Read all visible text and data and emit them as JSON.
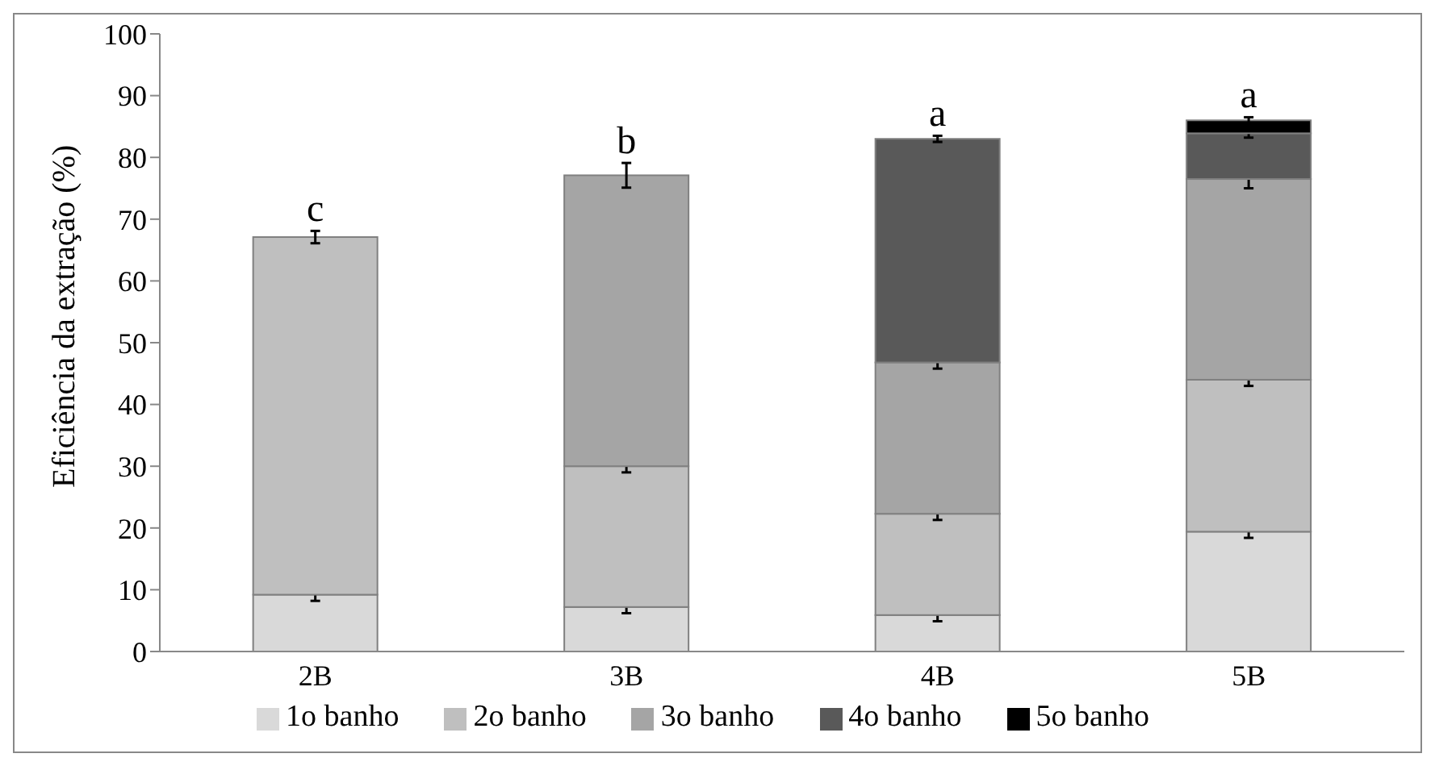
{
  "chart_data": {
    "type": "bar",
    "stacked": true,
    "ylabel": "Eficiência da extração  (%)",
    "categories": [
      "2B",
      "3B",
      "4B",
      "5B"
    ],
    "ylim": [
      0,
      100
    ],
    "yticks": [
      0,
      10,
      20,
      30,
      40,
      50,
      60,
      70,
      80,
      90,
      100
    ],
    "grid": false,
    "legend": "bottom",
    "series": [
      {
        "name": "1o banho",
        "color": "#d9d9d9",
        "values": [
          9.2,
          7.2,
          5.9,
          19.4
        ],
        "errors": [
          1,
          1,
          1,
          1
        ]
      },
      {
        "name": "2o banho",
        "color": "#bfbfbf",
        "values": [
          57.9,
          22.8,
          16.4,
          24.6
        ],
        "errors": [
          1,
          1,
          1,
          1
        ]
      },
      {
        "name": "3o banho",
        "color": "#a5a5a5",
        "values": [
          null,
          47.1,
          24.5,
          32.5
        ],
        "errors": [
          null,
          2,
          1,
          1.5
        ]
      },
      {
        "name": "4o banho",
        "color": "#595959",
        "values": [
          null,
          null,
          36.2,
          7.4
        ],
        "errors": [
          null,
          null,
          0.5,
          0.7
        ]
      },
      {
        "name": "5o banho",
        "color": "#000000",
        "values": [
          null,
          null,
          null,
          2.1
        ],
        "errors": [
          null,
          null,
          null,
          0.5
        ]
      }
    ],
    "annotations": [
      "c",
      "b",
      "a",
      "a"
    ]
  }
}
